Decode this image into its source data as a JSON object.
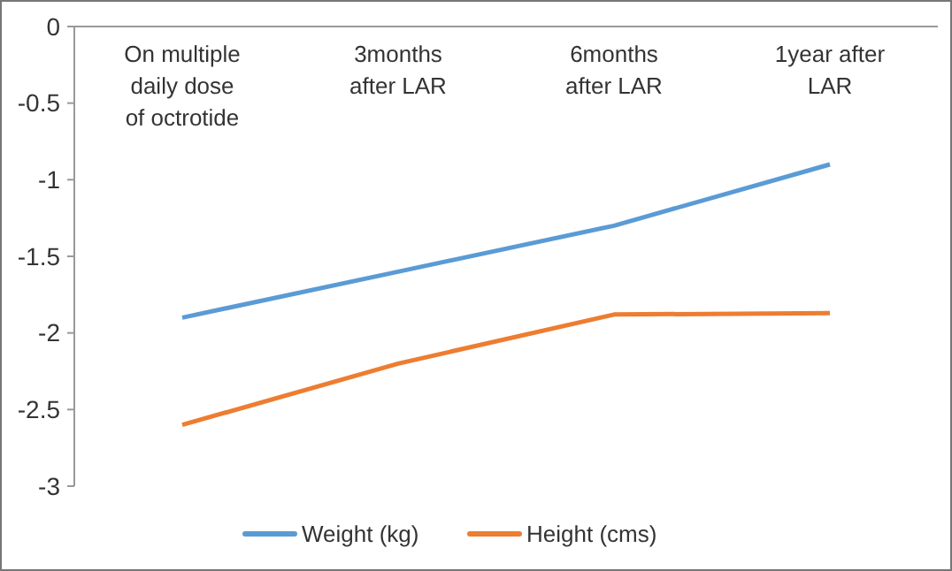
{
  "chart_data": {
    "type": "line",
    "categories": [
      "On multiple daily dose of octrotide",
      "3months after LAR",
      "6months after LAR",
      "1year after LAR"
    ],
    "series": [
      {
        "name": "Weight (kg)",
        "color": "#5b9bd5",
        "values": [
          -1.9,
          -1.6,
          -1.3,
          -0.9
        ]
      },
      {
        "name": "Height (cms)",
        "color": "#ed7d31",
        "values": [
          -2.6,
          -2.2,
          -1.88,
          -1.87
        ]
      }
    ],
    "ylim": [
      -3,
      0
    ],
    "yticks": [
      0,
      -0.5,
      -1,
      -1.5,
      -2,
      -2.5,
      -3
    ],
    "grid": false,
    "legend": "bottom",
    "marker": "none",
    "line_style": "solid"
  }
}
